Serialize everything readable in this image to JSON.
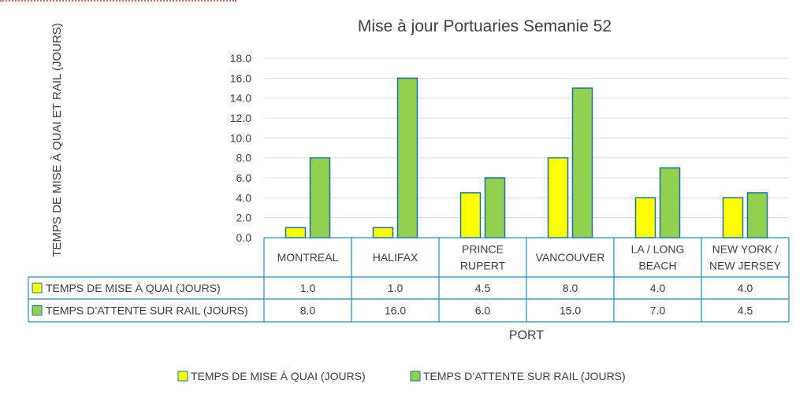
{
  "chart_data": {
    "type": "bar",
    "title": "Mise à jour Portuaries Semanie 52",
    "ylabel": "TEMPS DE MISE À QUAI ET RAIL (JOURS)",
    "xlabel": "PORT",
    "ylim": [
      0,
      18
    ],
    "ytick_step": 2,
    "ytick_labels": [
      "0.0",
      "2.0",
      "4.0",
      "6.0",
      "8.0",
      "10.0",
      "12.0",
      "14.0",
      "16.0",
      "18.0"
    ],
    "grid": true,
    "legend_position": "bottom",
    "categories": [
      [
        "MONTREAL"
      ],
      [
        "HALIFAX"
      ],
      [
        "PRINCE",
        "RUPERT"
      ],
      [
        "VANCOUVER"
      ],
      [
        "LA / LONG",
        "BEACH"
      ],
      [
        "NEW YORK /",
        "NEW JERSEY"
      ]
    ],
    "series": [
      {
        "name": "TEMPS DE MISE À QUAI (JOURS)",
        "values": [
          1.0,
          1.0,
          4.5,
          8.0,
          4.0,
          4.0
        ],
        "table_values": [
          "1.0",
          "1.0",
          "4.5",
          "8.0",
          "4.0",
          "4.0"
        ],
        "color": "#ffff00",
        "stroke": "#1f6f9f"
      },
      {
        "name": "TEMPS  D’ATTENTE SUR RAIL (JOURS)",
        "values": [
          8.0,
          16.0,
          6.0,
          15.0,
          7.0,
          4.5
        ],
        "table_values": [
          "8.0",
          "16.0",
          "6.0",
          "15.0",
          "7.0",
          "4.5"
        ],
        "color": "#92d050",
        "stroke": "#1f6f9f"
      }
    ]
  }
}
